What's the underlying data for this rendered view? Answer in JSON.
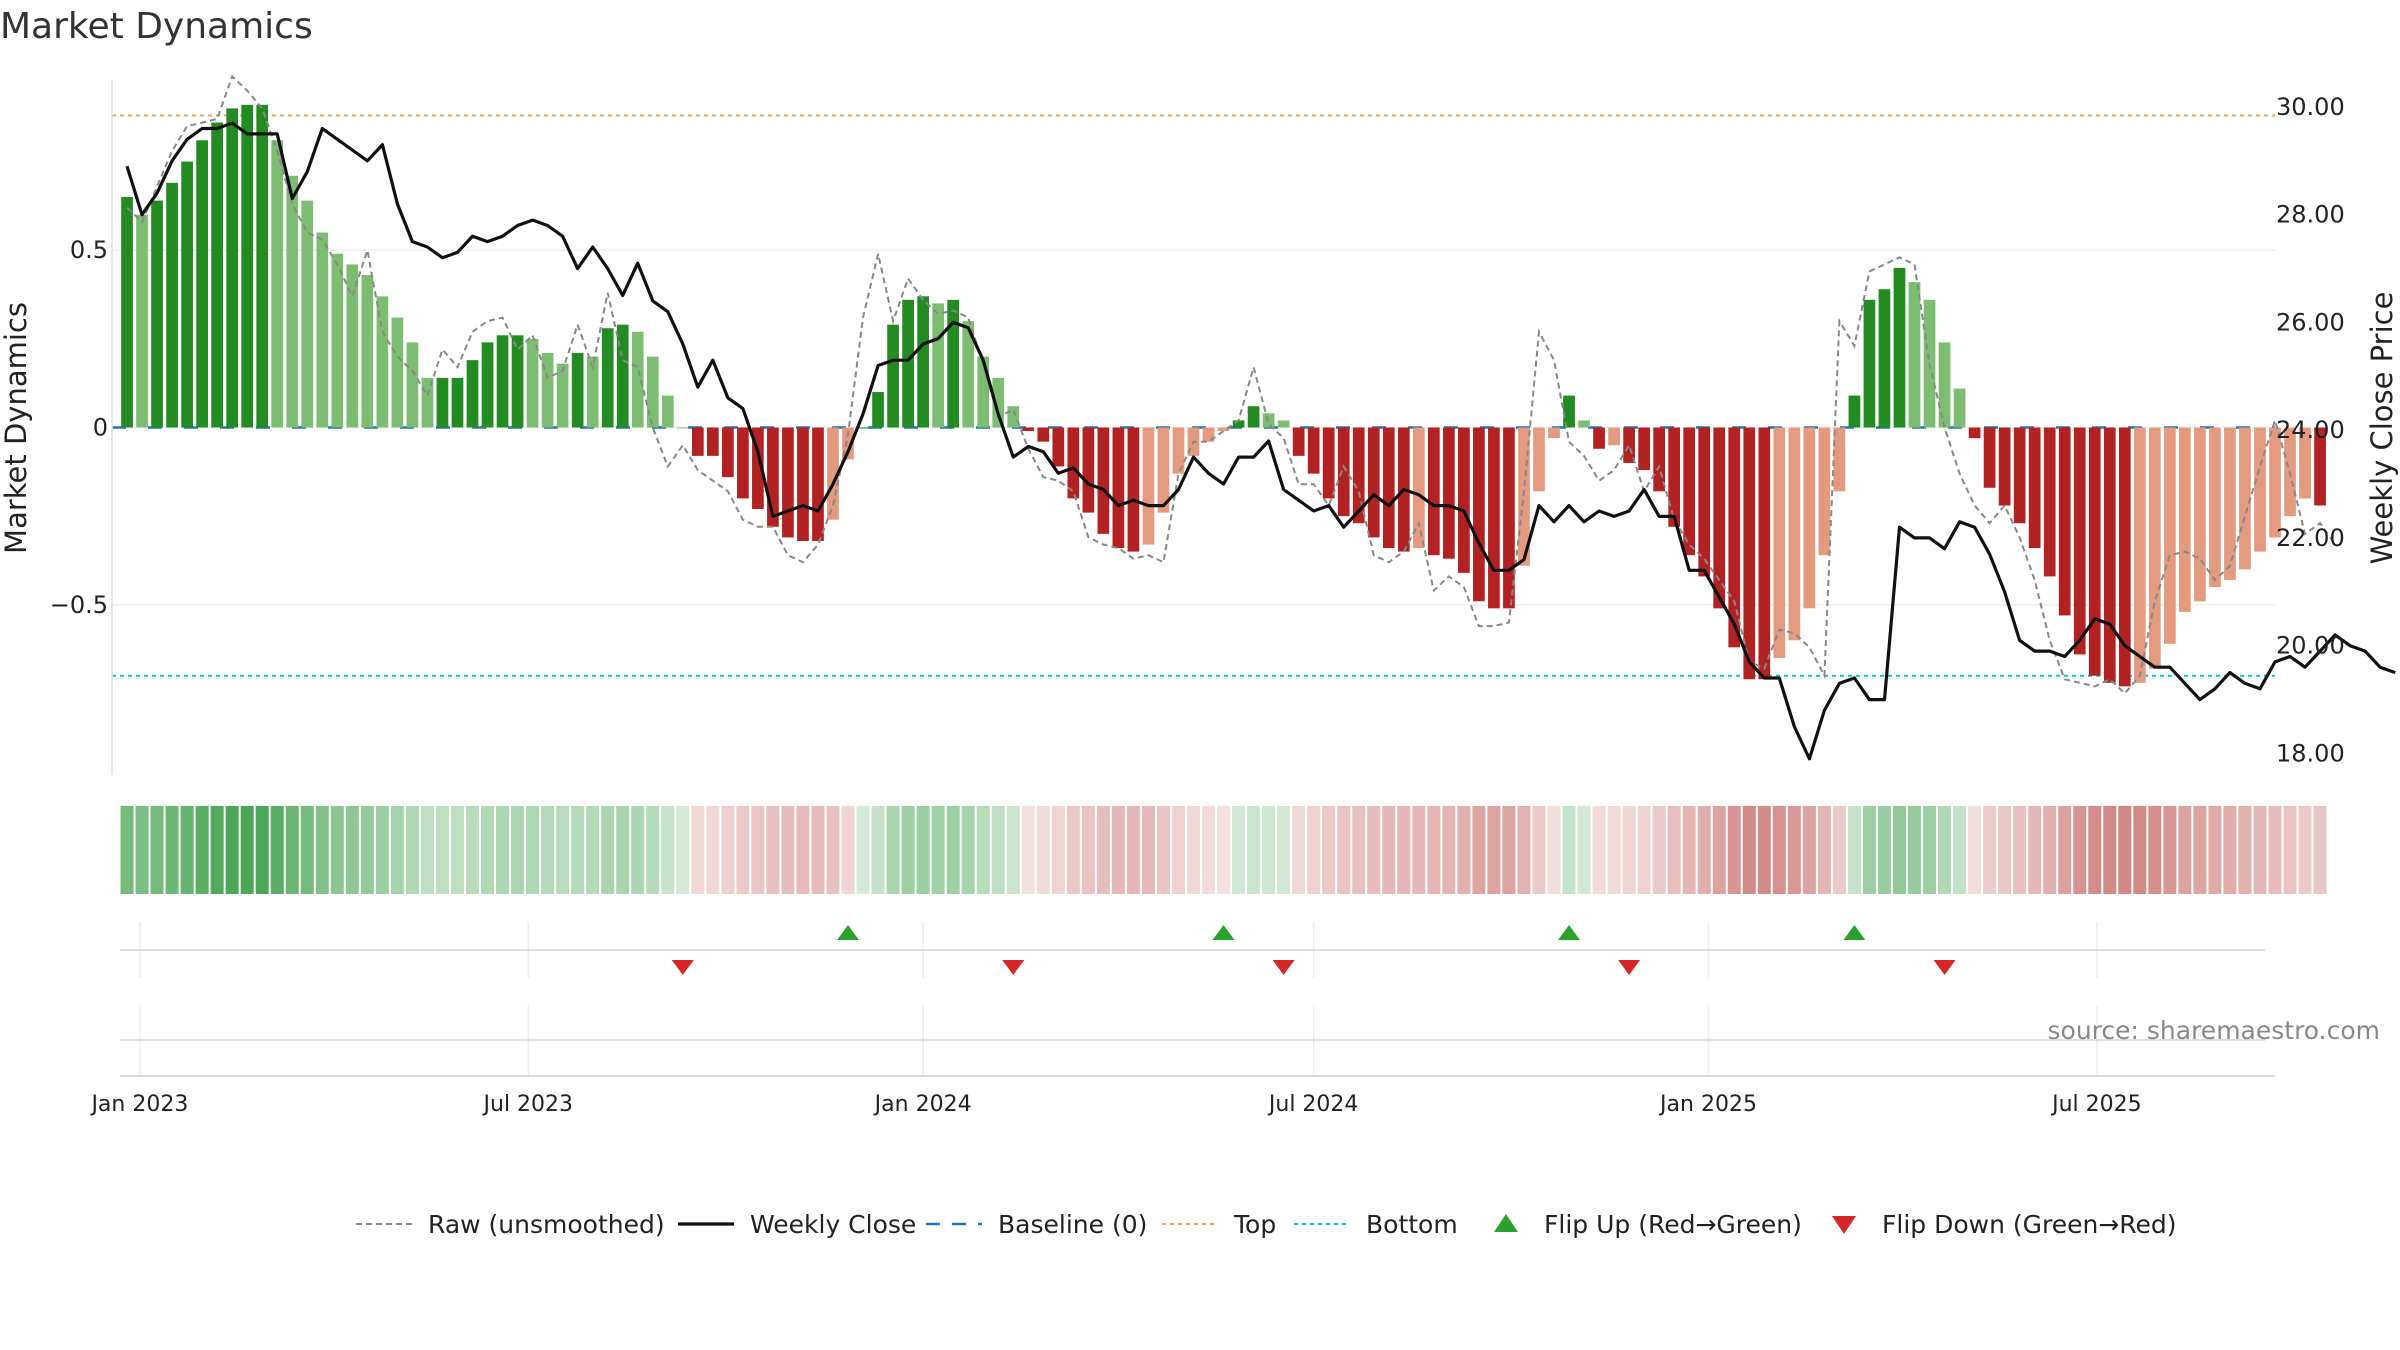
{
  "chart_data": {
    "type": "bar",
    "title": "Market Dynamics",
    "ylabel": "Market Dynamics",
    "y2label": "Weekly Close Price",
    "source": "source: sharemaestro.com",
    "ylim": [
      -0.98,
      0.98
    ],
    "y2lim": [
      17.6,
      30.5
    ],
    "yticks": [
      {
        "v": 0.5,
        "t": "0.5"
      },
      {
        "v": 0,
        "t": "0"
      },
      {
        "v": -0.5,
        "t": "−0.5"
      }
    ],
    "y2ticks": [
      {
        "v": 30,
        "t": "30.00"
      },
      {
        "v": 28,
        "t": "28.00"
      },
      {
        "v": 26,
        "t": "26.00"
      },
      {
        "v": 24,
        "t": "24.00"
      },
      {
        "v": 22,
        "t": "22.00"
      },
      {
        "v": 20,
        "t": "20.00"
      },
      {
        "v": 18,
        "t": "18.00"
      }
    ],
    "x_start": "2022-12-19",
    "x_end": "2025-09-22",
    "xticks": [
      {
        "d": "2023-01-01",
        "t": "Jan 2023"
      },
      {
        "d": "2023-07-01",
        "t": "Jul 2023"
      },
      {
        "d": "2024-01-01",
        "t": "Jan 2024"
      },
      {
        "d": "2024-07-01",
        "t": "Jul 2024"
      },
      {
        "d": "2025-01-01",
        "t": "Jan 2025"
      },
      {
        "d": "2025-07-01",
        "t": "Jul 2025"
      }
    ],
    "top_line": 0.88,
    "bottom_line": -0.7,
    "week_start": "2022-12-26",
    "week_interval_days": 7,
    "bars": [
      0.65,
      0.6,
      0.64,
      0.69,
      0.75,
      0.81,
      0.86,
      0.9,
      0.91,
      0.91,
      0.81,
      0.71,
      0.64,
      0.55,
      0.49,
      0.46,
      0.43,
      0.37,
      0.31,
      0.24,
      0.14,
      0.14,
      0.14,
      0.19,
      0.24,
      0.26,
      0.26,
      0.25,
      0.21,
      0.18,
      0.21,
      0.2,
      0.28,
      0.29,
      0.27,
      0.2,
      0.09,
      0.0,
      -0.08,
      -0.08,
      -0.14,
      -0.2,
      -0.23,
      -0.28,
      -0.31,
      -0.32,
      -0.32,
      -0.26,
      -0.09,
      0.0,
      0.1,
      0.29,
      0.36,
      0.37,
      0.35,
      0.36,
      0.3,
      0.2,
      0.14,
      0.06,
      -0.01,
      -0.04,
      -0.11,
      -0.2,
      -0.24,
      -0.3,
      -0.34,
      -0.35,
      -0.33,
      -0.24,
      -0.13,
      -0.08,
      -0.04,
      -0.01,
      0.02,
      0.06,
      0.04,
      0.02,
      -0.08,
      -0.13,
      -0.2,
      -0.25,
      -0.27,
      -0.31,
      -0.34,
      -0.35,
      -0.34,
      -0.36,
      -0.37,
      -0.41,
      -0.49,
      -0.51,
      -0.51,
      -0.39,
      -0.18,
      -0.03,
      0.09,
      0.02,
      -0.06,
      -0.05,
      -0.1,
      -0.12,
      -0.18,
      -0.28,
      -0.36,
      -0.42,
      -0.51,
      -0.62,
      -0.71,
      -0.71,
      -0.65,
      -0.6,
      -0.51,
      -0.36,
      -0.18,
      0.09,
      0.36,
      0.39,
      0.45,
      0.41,
      0.36,
      0.24,
      0.11,
      -0.03,
      -0.17,
      -0.22,
      -0.27,
      -0.34,
      -0.42,
      -0.53,
      -0.64,
      -0.7,
      -0.72,
      -0.73,
      -0.72,
      -0.68,
      -0.61,
      -0.52,
      -0.49,
      -0.45,
      -0.43,
      -0.4,
      -0.35,
      -0.31,
      -0.25,
      -0.2,
      -0.22
    ],
    "raw": [
      0.62,
      0.58,
      0.68,
      0.78,
      0.85,
      0.86,
      0.87,
      0.99,
      0.95,
      0.9,
      0.78,
      0.63,
      0.55,
      0.53,
      0.46,
      0.37,
      0.5,
      0.27,
      0.2,
      0.16,
      0.09,
      0.22,
      0.17,
      0.27,
      0.3,
      0.31,
      0.22,
      0.26,
      0.14,
      0.16,
      0.29,
      0.17,
      0.38,
      0.19,
      0.17,
      0.0,
      -0.11,
      -0.05,
      -0.12,
      -0.15,
      -0.18,
      -0.26,
      -0.28,
      -0.28,
      -0.36,
      -0.38,
      -0.33,
      -0.22,
      -0.02,
      0.31,
      0.49,
      0.3,
      0.42,
      0.36,
      0.32,
      0.33,
      0.31,
      0.18,
      0.03,
      0.05,
      -0.06,
      -0.14,
      -0.15,
      -0.18,
      -0.31,
      -0.33,
      -0.34,
      -0.37,
      -0.36,
      -0.38,
      -0.13,
      -0.04,
      -0.04,
      -0.01,
      0.02,
      0.17,
      0.01,
      -0.03,
      -0.16,
      -0.16,
      -0.22,
      -0.11,
      -0.18,
      -0.36,
      -0.38,
      -0.35,
      -0.27,
      -0.46,
      -0.42,
      -0.45,
      -0.56,
      -0.56,
      -0.55,
      -0.18,
      0.27,
      0.19,
      -0.04,
      -0.08,
      -0.15,
      -0.12,
      -0.05,
      -0.18,
      -0.11,
      -0.26,
      -0.33,
      -0.37,
      -0.43,
      -0.49,
      -0.66,
      -0.68,
      -0.57,
      -0.58,
      -0.62,
      -0.7,
      0.3,
      0.23,
      0.44,
      0.46,
      0.48,
      0.46,
      0.18,
      0.0,
      -0.13,
      -0.22,
      -0.27,
      -0.22,
      -0.31,
      -0.43,
      -0.6,
      -0.71,
      -0.72,
      -0.73,
      -0.71,
      -0.75,
      -0.7,
      -0.49,
      -0.36,
      -0.35,
      -0.37,
      -0.43,
      -0.39,
      -0.25,
      -0.11,
      0.02,
      -0.13,
      -0.3,
      -0.27,
      -0.33
    ],
    "close": [
      28.9,
      28.0,
      28.4,
      29.0,
      29.4,
      29.6,
      29.6,
      29.7,
      29.5,
      29.5,
      29.5,
      28.3,
      28.8,
      29.6,
      29.4,
      29.2,
      29.0,
      29.3,
      28.2,
      27.5,
      27.4,
      27.2,
      27.3,
      27.6,
      27.5,
      27.6,
      27.8,
      27.9,
      27.8,
      27.6,
      27.0,
      27.4,
      27.0,
      26.5,
      27.1,
      26.4,
      26.2,
      25.6,
      24.8,
      25.3,
      24.6,
      24.4,
      23.6,
      22.4,
      22.5,
      22.6,
      22.5,
      23.0,
      23.6,
      24.3,
      25.2,
      25.3,
      25.3,
      25.6,
      25.7,
      26.0,
      25.9,
      25.3,
      24.3,
      23.5,
      23.7,
      23.6,
      23.2,
      23.3,
      23.0,
      22.9,
      22.6,
      22.7,
      22.6,
      22.6,
      22.9,
      23.5,
      23.2,
      23.0,
      23.5,
      23.5,
      23.8,
      22.9,
      22.7,
      22.5,
      22.6,
      22.2,
      22.5,
      22.8,
      22.6,
      22.9,
      22.8,
      22.6,
      22.6,
      22.5,
      21.9,
      21.4,
      21.4,
      21.6,
      22.6,
      22.3,
      22.6,
      22.3,
      22.5,
      22.4,
      22.5,
      22.9,
      22.4,
      22.4,
      21.4,
      21.4,
      20.9,
      20.4,
      19.7,
      19.4,
      19.4,
      18.5,
      17.9,
      18.8,
      19.3,
      19.4,
      19.0,
      19.0,
      22.2,
      22.0,
      22.0,
      21.8,
      22.3,
      22.2,
      21.7,
      21.0,
      20.1,
      19.9,
      19.9,
      19.8,
      20.1,
      20.5,
      20.4,
      20.0,
      19.8,
      19.6,
      19.6,
      19.3,
      19.0,
      19.2,
      19.5,
      19.3,
      19.2,
      19.7,
      19.8,
      19.6,
      19.9,
      20.2,
      20.0,
      19.9,
      19.6,
      19.5
    ],
    "flip_up": [
      "2023-11-27",
      "2024-05-20",
      "2024-10-28",
      "2025-03-10"
    ],
    "flip_down": [
      "2023-09-11",
      "2024-02-12",
      "2024-06-17",
      "2024-11-25",
      "2025-04-21"
    ],
    "heat_green": "#3a9e47",
    "heat_red": "#c05a55",
    "colors": {
      "dark_green": "#228b22",
      "light_green": "#7dbd72",
      "dark_red": "#b22222",
      "light_red": "#e39a7f",
      "raw": "#888888",
      "close": "#111111",
      "baseline": "#1f77b4",
      "top": "#f4a460",
      "bottom": "#17becf",
      "flip_up": "#2ca02c",
      "flip_down": "#d62728"
    },
    "legend": [
      "Raw (unsmoothed)",
      "Weekly Close",
      "Baseline (0)",
      "Top",
      "Bottom",
      "Flip Up (Red→Green)",
      "Flip Down (Green→Red)"
    ],
    "legend_position": "bottom-center"
  }
}
